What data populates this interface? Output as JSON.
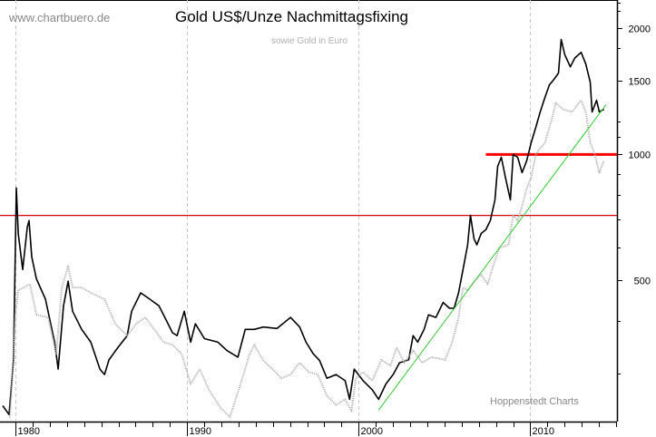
{
  "watermark": "www.chartbuero.de",
  "credit": "Hoppenstedt Charts",
  "chart_data": {
    "type": "line",
    "title": "Gold US$/Unze Nachmittagsfixing",
    "subtitle": "sowie Gold in Euro",
    "xlabel": "",
    "ylabel": "",
    "y_scale": "log",
    "xlim": [
      1979.1,
      2015.05
    ],
    "ylim": [
      230,
      2340
    ],
    "x_tick_labels": [
      "1980",
      "1990",
      "2000",
      "2010"
    ],
    "x_ticks": [
      1980,
      1990,
      2000,
      2010
    ],
    "y_tick_labels": [
      "500",
      "1000",
      "1500",
      "2000"
    ],
    "y_ticks": [
      500,
      1000,
      1500,
      2000
    ],
    "y_minor_ticks": [
      300,
      400,
      600,
      700,
      800,
      900,
      1100,
      1200,
      1800,
      2200,
      2300
    ],
    "grid": "vertical dashed at decades",
    "legend": "none",
    "series": [
      {
        "color": "#000000",
        "style": "solid",
        "points": [
          [
            1979.26,
            251
          ],
          [
            1979.63,
            239
          ],
          [
            1979.89,
            323
          ],
          [
            1980.05,
            832
          ],
          [
            1980.16,
            648
          ],
          [
            1980.42,
            531
          ],
          [
            1980.69,
            671
          ],
          [
            1980.79,
            695
          ],
          [
            1980.95,
            569
          ],
          [
            1981.22,
            505
          ],
          [
            1981.75,
            451
          ],
          [
            1982.28,
            356
          ],
          [
            1982.49,
            307
          ],
          [
            1982.8,
            435
          ],
          [
            1983.07,
            498
          ],
          [
            1983.33,
            422
          ],
          [
            1983.86,
            382
          ],
          [
            1984.39,
            356
          ],
          [
            1984.92,
            307
          ],
          [
            1985.19,
            298
          ],
          [
            1985.45,
            323
          ],
          [
            1985.98,
            346
          ],
          [
            1986.51,
            369
          ],
          [
            1986.77,
            422
          ],
          [
            1987.3,
            467
          ],
          [
            1987.83,
            451
          ],
          [
            1988.36,
            435
          ],
          [
            1988.89,
            394
          ],
          [
            1989.15,
            375
          ],
          [
            1989.42,
            369
          ],
          [
            1989.84,
            422
          ],
          [
            1990.21,
            356
          ],
          [
            1990.48,
            394
          ],
          [
            1991.01,
            363
          ],
          [
            1991.8,
            356
          ],
          [
            1992.33,
            340
          ],
          [
            1992.96,
            328
          ],
          [
            1993.39,
            382
          ],
          [
            1993.92,
            382
          ],
          [
            1994.44,
            387
          ],
          [
            1995.24,
            384
          ],
          [
            1996.03,
            408
          ],
          [
            1996.56,
            387
          ],
          [
            1996.93,
            356
          ],
          [
            1997.35,
            334
          ],
          [
            1997.72,
            322
          ],
          [
            1998.15,
            292
          ],
          [
            1998.68,
            298
          ],
          [
            1999.21,
            288
          ],
          [
            1999.47,
            260
          ],
          [
            1999.74,
            307
          ],
          [
            2000.26,
            288
          ],
          [
            2000.79,
            274
          ],
          [
            2001.16,
            260
          ],
          [
            2001.59,
            283
          ],
          [
            2002.01,
            298
          ],
          [
            2002.38,
            318
          ],
          [
            2002.91,
            323
          ],
          [
            2003.17,
            369
          ],
          [
            2003.44,
            356
          ],
          [
            2003.81,
            382
          ],
          [
            2004.07,
            414
          ],
          [
            2004.5,
            408
          ],
          [
            2004.92,
            443
          ],
          [
            2005.29,
            429
          ],
          [
            2005.56,
            429
          ],
          [
            2005.82,
            467
          ],
          [
            2006.08,
            531
          ],
          [
            2006.35,
            608
          ],
          [
            2006.51,
            716
          ],
          [
            2006.72,
            629
          ],
          [
            2006.88,
            608
          ],
          [
            2007.14,
            648
          ],
          [
            2007.41,
            661
          ],
          [
            2007.67,
            695
          ],
          [
            2007.94,
            779
          ],
          [
            2008.1,
            937
          ],
          [
            2008.31,
            985
          ],
          [
            2008.57,
            874
          ],
          [
            2008.84,
            779
          ],
          [
            2009.0,
            1000
          ],
          [
            2009.26,
            985
          ],
          [
            2009.52,
            905
          ],
          [
            2009.79,
            966
          ],
          [
            2010.05,
            1067
          ],
          [
            2010.32,
            1161
          ],
          [
            2010.58,
            1264
          ],
          [
            2010.85,
            1369
          ],
          [
            2011.11,
            1467
          ],
          [
            2011.38,
            1512
          ],
          [
            2011.64,
            1565
          ],
          [
            2011.8,
            1883
          ],
          [
            2012.01,
            1730
          ],
          [
            2012.33,
            1620
          ],
          [
            2012.59,
            1700
          ],
          [
            2012.96,
            1755
          ],
          [
            2013.23,
            1645
          ],
          [
            2013.49,
            1489
          ],
          [
            2013.6,
            1264
          ],
          [
            2013.86,
            1348
          ],
          [
            2014.02,
            1264
          ],
          [
            2014.29,
            1283
          ]
        ]
      },
      {
        "color": "#b0b0b0",
        "style": "dotted",
        "points": [
          [
            1979.68,
            235
          ],
          [
            1980.0,
            414
          ],
          [
            1980.16,
            474
          ],
          [
            1980.85,
            490
          ],
          [
            1981.22,
            414
          ],
          [
            1981.9,
            408
          ],
          [
            1982.38,
            334
          ],
          [
            1982.7,
            481
          ],
          [
            1983.07,
            541
          ],
          [
            1983.33,
            481
          ],
          [
            1983.86,
            481
          ],
          [
            1984.39,
            467
          ],
          [
            1985.19,
            451
          ],
          [
            1985.82,
            394
          ],
          [
            1986.51,
            369
          ],
          [
            1987.04,
            394
          ],
          [
            1987.57,
            408
          ],
          [
            1988.1,
            382
          ],
          [
            1988.62,
            356
          ],
          [
            1989.15,
            351
          ],
          [
            1989.68,
            334
          ],
          [
            1990.21,
            283
          ],
          [
            1990.74,
            307
          ],
          [
            1991.27,
            274
          ],
          [
            1991.96,
            248
          ],
          [
            1992.49,
            236
          ],
          [
            1993.12,
            283
          ],
          [
            1993.65,
            334
          ],
          [
            1993.92,
            351
          ],
          [
            1994.44,
            322
          ],
          [
            1994.97,
            307
          ],
          [
            1995.5,
            292
          ],
          [
            1996.03,
            298
          ],
          [
            1996.56,
            318
          ],
          [
            1997.09,
            302
          ],
          [
            1997.62,
            298
          ],
          [
            1998.15,
            265
          ],
          [
            1998.68,
            252
          ],
          [
            1999.21,
            260
          ],
          [
            1999.58,
            244
          ],
          [
            1999.84,
            292
          ],
          [
            2000.26,
            302
          ],
          [
            2000.79,
            288
          ],
          [
            2001.32,
            323
          ],
          [
            2001.85,
            313
          ],
          [
            2002.22,
            346
          ],
          [
            2002.65,
            318
          ],
          [
            2003.17,
            340
          ],
          [
            2003.7,
            318
          ],
          [
            2004.23,
            328
          ],
          [
            2005.03,
            323
          ],
          [
            2005.45,
            356
          ],
          [
            2005.82,
            408
          ],
          [
            2006.08,
            481
          ],
          [
            2006.35,
            474
          ],
          [
            2006.72,
            498
          ],
          [
            2007.14,
            516
          ],
          [
            2007.51,
            490
          ],
          [
            2007.94,
            558
          ],
          [
            2008.2,
            598
          ],
          [
            2008.73,
            608
          ],
          [
            2009.0,
            716
          ],
          [
            2009.26,
            695
          ],
          [
            2009.52,
            753
          ],
          [
            2009.79,
            830
          ],
          [
            2010.05,
            880
          ],
          [
            2010.32,
            1000
          ],
          [
            2010.58,
            1035
          ],
          [
            2010.85,
            1067
          ],
          [
            2011.27,
            1221
          ],
          [
            2011.48,
            1329
          ],
          [
            2011.9,
            1283
          ],
          [
            2012.43,
            1264
          ],
          [
            2012.96,
            1348
          ],
          [
            2013.23,
            1264
          ],
          [
            2013.49,
            1067
          ],
          [
            2013.76,
            1000
          ],
          [
            2014.02,
            905
          ],
          [
            2014.29,
            966
          ]
        ]
      }
    ],
    "annotations": [
      {
        "type": "trendline",
        "color": "#33cc33",
        "from": [
          2001.16,
          245
        ],
        "to": [
          2014.41,
          1315
        ]
      },
      {
        "type": "hline",
        "color": "#ff0000",
        "value": 1000,
        "from_x": 2007.41,
        "thick": true
      },
      {
        "type": "hline",
        "color": "#dd0000",
        "value": 715,
        "thick": false
      }
    ]
  }
}
